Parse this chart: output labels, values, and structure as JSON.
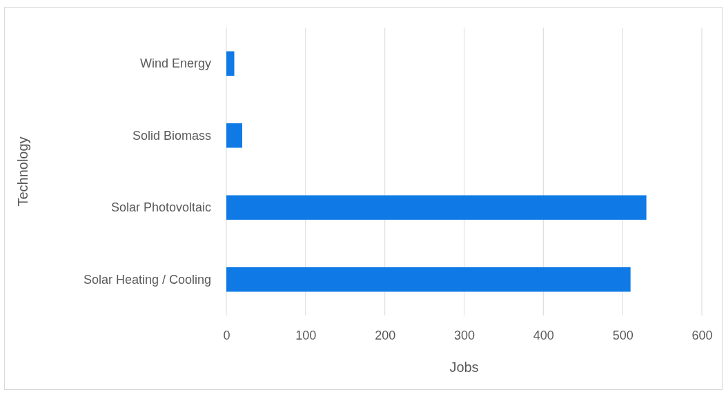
{
  "chart_data": {
    "type": "bar",
    "orientation": "horizontal",
    "xlabel": "Jobs",
    "ylabel": "Technology",
    "categories": [
      "Wind Energy",
      "Solid Biomass",
      "Solar Photovoltaic",
      "Solar Heating / Cooling"
    ],
    "values": [
      10,
      20,
      530,
      510
    ],
    "color": "#0f7ae5",
    "xlim": [
      0,
      600
    ],
    "xticks": [
      0,
      100,
      200,
      300,
      400,
      500,
      600
    ],
    "grid": "x"
  }
}
